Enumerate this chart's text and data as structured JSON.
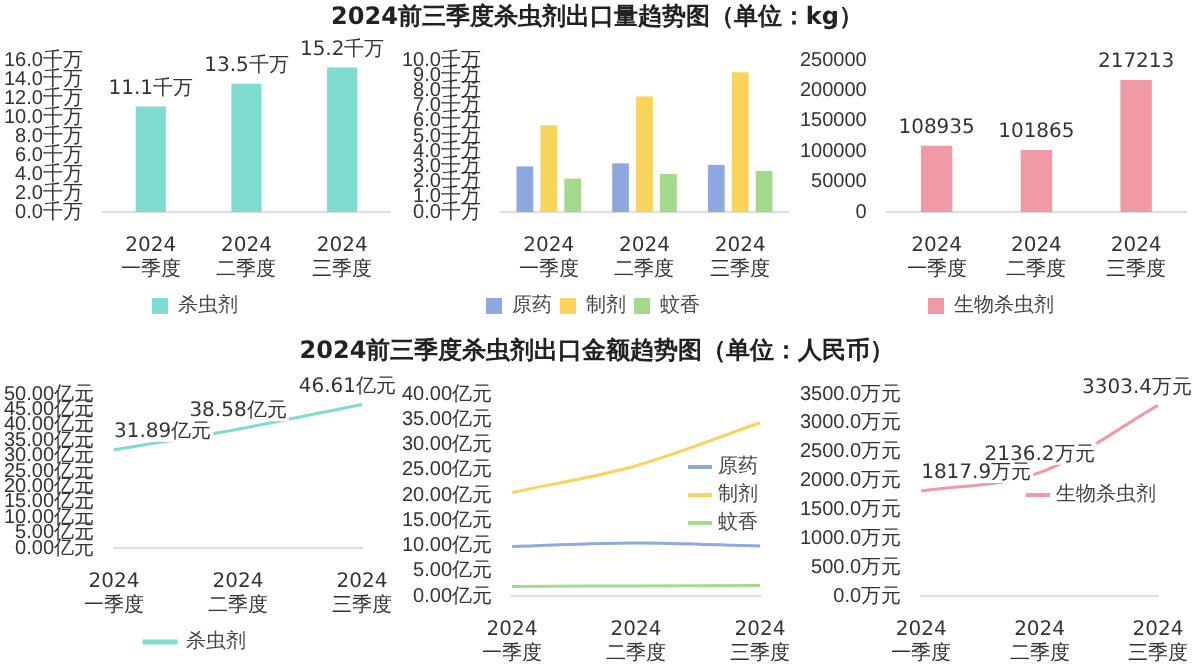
{
  "chart_data": [
    {
      "type": "bar",
      "title": "2024前三季度杀虫剂出口量趋势图（单位：kg）",
      "categories": [
        "2024一季度",
        "2024二季度",
        "2024三季度"
      ],
      "series": [
        {
          "name": "杀虫剂",
          "color": "#7fdccf",
          "values": [
            11.1,
            13.5,
            15.2
          ],
          "value_labels": [
            "11.1千万",
            "13.5千万",
            "15.2千万"
          ]
        }
      ],
      "ylim": [
        0,
        16
      ],
      "yticks": [
        {
          "value": 0,
          "label": "0.0千万"
        },
        {
          "value": 2,
          "label": "2.0千万"
        },
        {
          "value": 4,
          "label": "4.0千万"
        },
        {
          "value": 6,
          "label": "6.0千万"
        },
        {
          "value": 8,
          "label": "8.0千万"
        },
        {
          "value": 10,
          "label": "10.0千万"
        },
        {
          "value": 12,
          "label": "12.0千万"
        },
        {
          "value": 14,
          "label": "14.0千万"
        },
        {
          "value": 16,
          "label": "16.0千万"
        }
      ],
      "grid": false,
      "legend": "bottom"
    },
    {
      "type": "bar",
      "categories": [
        "2024一季度",
        "2024二季度",
        "2024三季度"
      ],
      "series": [
        {
          "name": "原药",
          "color": "#8fa9e0",
          "values": [
            3.0,
            3.2,
            3.1
          ]
        },
        {
          "name": "制剂",
          "color": "#f9d45c",
          "values": [
            5.7,
            7.6,
            9.2
          ]
        },
        {
          "name": "蚊香",
          "color": "#a5d98e",
          "values": [
            2.2,
            2.5,
            2.7
          ]
        }
      ],
      "ylim": [
        0,
        10
      ],
      "yticks": [
        {
          "value": 0,
          "label": "0.0千万"
        },
        {
          "value": 1,
          "label": "1.0千万"
        },
        {
          "value": 2,
          "label": "2.0千万"
        },
        {
          "value": 3,
          "label": "3.0千万"
        },
        {
          "value": 4,
          "label": "4.0千万"
        },
        {
          "value": 5,
          "label": "5.0千万"
        },
        {
          "value": 6,
          "label": "6.0千万"
        },
        {
          "value": 7,
          "label": "7.0千万"
        },
        {
          "value": 8,
          "label": "8.0千万"
        },
        {
          "value": 9,
          "label": "9.0千万"
        },
        {
          "value": 10,
          "label": "10.0千万"
        }
      ],
      "grid": false,
      "legend": "bottom"
    },
    {
      "type": "bar",
      "categories": [
        "2024一季度",
        "2024二季度",
        "2024三季度"
      ],
      "series": [
        {
          "name": "生物杀虫剂",
          "color": "#ef9aa4",
          "values": [
            108935,
            101865,
            217213
          ]
        }
      ],
      "data_labels": true,
      "ylim": [
        0,
        250000
      ],
      "yticks": [
        0,
        50000,
        100000,
        150000,
        200000,
        250000
      ],
      "grid": false,
      "legend": "bottom"
    },
    {
      "type": "line",
      "title": "2024前三季度杀虫剂出口金额趋势图（单位：人民币）",
      "categories": [
        "2024一季度",
        "2024二季度",
        "2024三季度"
      ],
      "series": [
        {
          "name": "杀虫剂",
          "color": "#7fdccf",
          "values": [
            31.89,
            38.58,
            46.61
          ],
          "value_labels": [
            "31.89亿元",
            "38.58亿元",
            "46.61亿元"
          ]
        }
      ],
      "ylim": [
        0,
        50
      ],
      "yticks": [
        {
          "value": 0,
          "label": "0.00亿元"
        },
        {
          "value": 5,
          "label": "5.00亿元"
        },
        {
          "value": 10,
          "label": "10.00亿元"
        },
        {
          "value": 15,
          "label": "15.00亿元"
        },
        {
          "value": 20,
          "label": "20.00亿元"
        },
        {
          "value": 25,
          "label": "25.00亿元"
        },
        {
          "value": 30,
          "label": "30.00亿元"
        },
        {
          "value": 35,
          "label": "35.00亿元"
        },
        {
          "value": 40,
          "label": "40.00亿元"
        },
        {
          "value": 45,
          "label": "45.00亿元"
        },
        {
          "value": 50,
          "label": "50.00亿元"
        }
      ],
      "grid": false,
      "legend": "bottom"
    },
    {
      "type": "line",
      "categories": [
        "2024一季度",
        "2024二季度",
        "2024三季度"
      ],
      "series": [
        {
          "name": "原药",
          "color": "#8fa9e0",
          "values": [
            9.8,
            10.5,
            9.9
          ]
        },
        {
          "name": "制剂",
          "color": "#f9d45c",
          "values": [
            20.5,
            25.8,
            34.3
          ]
        },
        {
          "name": "蚊香",
          "color": "#a5d98e",
          "values": [
            1.9,
            2.0,
            2.1
          ]
        }
      ],
      "ylim": [
        0,
        40
      ],
      "yticks": [
        {
          "value": 0,
          "label": "0.00亿元"
        },
        {
          "value": 5,
          "label": "5.00亿元"
        },
        {
          "value": 10,
          "label": "10.00亿元"
        },
        {
          "value": 15,
          "label": "15.00亿元"
        },
        {
          "value": 20,
          "label": "20.00亿元"
        },
        {
          "value": 25,
          "label": "25.00亿元"
        },
        {
          "value": 30,
          "label": "30.00亿元"
        },
        {
          "value": 35,
          "label": "35.00亿元"
        },
        {
          "value": 40,
          "label": "40.00亿元"
        }
      ],
      "grid": false,
      "legend": "right"
    },
    {
      "type": "line",
      "categories": [
        "2024一季度",
        "2024二季度",
        "2024三季度"
      ],
      "series": [
        {
          "name": "生物杀虫剂",
          "color": "#ef9aa4",
          "values": [
            1817.9,
            2136.2,
            3303.4
          ],
          "value_labels": [
            "1817.9万元",
            "2136.2万元",
            "3303.4万元"
          ]
        }
      ],
      "ylim": [
        0,
        3500
      ],
      "yticks": [
        {
          "value": 0,
          "label": "0.0万元"
        },
        {
          "value": 500,
          "label": "500.0万元"
        },
        {
          "value": 1000,
          "label": "1000.0万元"
        },
        {
          "value": 1500,
          "label": "1500.0万元"
        },
        {
          "value": 2000,
          "label": "2000.0万元"
        },
        {
          "value": 2500,
          "label": "2500.0万元"
        },
        {
          "value": 3000,
          "label": "3000.0万元"
        },
        {
          "value": 3500,
          "label": "3500.0万元"
        }
      ],
      "grid": false,
      "legend": "right"
    }
  ]
}
